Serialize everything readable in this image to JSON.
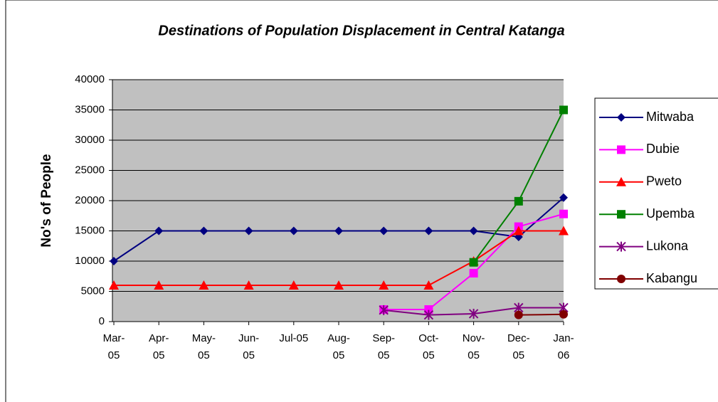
{
  "chart_data": {
    "type": "line",
    "title": "Destinations of Population Displacement in Central Katanga",
    "y_label": "No's of People",
    "categories": [
      "Mar-05",
      "Apr-05",
      "May-05",
      "Jun-05",
      "Jul-05",
      "Aug-05",
      "Sep-05",
      "Oct-05",
      "Nov-05",
      "Dec-05",
      "Jan-06"
    ],
    "series": [
      {
        "name": "Mitwaba",
        "color": "#000080",
        "marker": "diamond",
        "values": [
          10000,
          15000,
          15000,
          15000,
          15000,
          15000,
          15000,
          15000,
          15000,
          14000,
          20500
        ]
      },
      {
        "name": "Dubie",
        "color": "#ff00ff",
        "marker": "square",
        "values": [
          null,
          null,
          null,
          null,
          null,
          null,
          2000,
          2000,
          8000,
          15700,
          17800
        ]
      },
      {
        "name": "Pweto",
        "color": "#ff0000",
        "marker": "triangle",
        "values": [
          6000,
          6000,
          6000,
          6000,
          6000,
          6000,
          6000,
          6000,
          10000,
          15000,
          15000
        ]
      },
      {
        "name": "Upemba",
        "color": "#008000",
        "marker": "square",
        "values": [
          null,
          null,
          null,
          null,
          null,
          null,
          null,
          null,
          9800,
          19900,
          35000
        ]
      },
      {
        "name": "Lukona",
        "color": "#800080",
        "marker": "asterisk",
        "values": [
          null,
          null,
          null,
          null,
          null,
          null,
          1900,
          1100,
          1300,
          2300,
          2300
        ]
      },
      {
        "name": "Kabangu",
        "color": "#800000",
        "marker": "circle",
        "values": [
          null,
          null,
          null,
          null,
          null,
          null,
          null,
          null,
          null,
          1100,
          1200
        ]
      }
    ],
    "ylim": [
      0,
      40000
    ],
    "yticks": [
      0,
      5000,
      10000,
      15000,
      20000,
      25000,
      30000,
      35000,
      40000
    ],
    "grid": true,
    "legend": "right"
  }
}
